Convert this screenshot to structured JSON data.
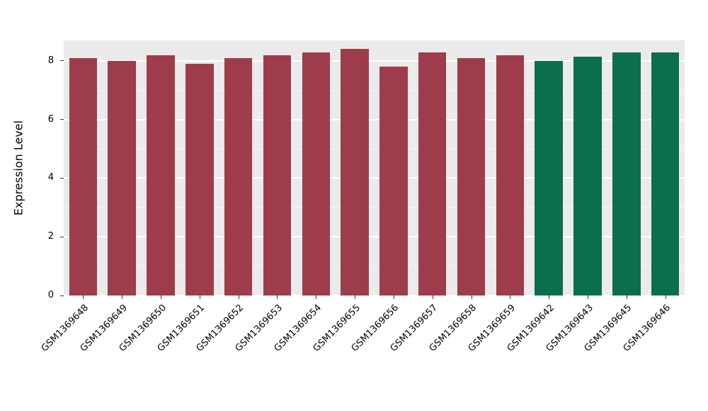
{
  "chart_data": {
    "type": "bar",
    "title": "",
    "xlabel": "",
    "ylabel": "Expression Level",
    "categories": [
      "GSM1369648",
      "GSM1369649",
      "GSM1369650",
      "GSM1369651",
      "GSM1369652",
      "GSM1369653",
      "GSM1369654",
      "GSM1369655",
      "GSM1369656",
      "GSM1369657",
      "GSM1369658",
      "GSM1369659",
      "GSM1369642",
      "GSM1369643",
      "GSM1369645",
      "GSM1369646"
    ],
    "values": [
      8.1,
      8.0,
      8.2,
      7.9,
      8.1,
      8.2,
      8.3,
      8.4,
      7.8,
      8.3,
      8.1,
      8.2,
      8.0,
      8.15,
      8.3,
      8.3
    ],
    "bar_colors": [
      "#9e3c4b",
      "#9e3c4b",
      "#9e3c4b",
      "#9e3c4b",
      "#9e3c4b",
      "#9e3c4b",
      "#9e3c4b",
      "#9e3c4b",
      "#9e3c4b",
      "#9e3c4b",
      "#9e3c4b",
      "#9e3c4b",
      "#0b6e4f",
      "#0b6e4f",
      "#0b6e4f",
      "#0b6e4f"
    ],
    "group_colors": {
      "group1": "#9e3c4b",
      "group2": "#0b6e4f"
    },
    "yticks": [
      0,
      2,
      4,
      6,
      8
    ],
    "minor_ticks": [
      1,
      3,
      5,
      7
    ],
    "ylim": [
      0,
      8.7
    ],
    "grid": true,
    "legend": "none",
    "plot_background": "#ebebeb",
    "gridline_color": "#ffffff"
  }
}
